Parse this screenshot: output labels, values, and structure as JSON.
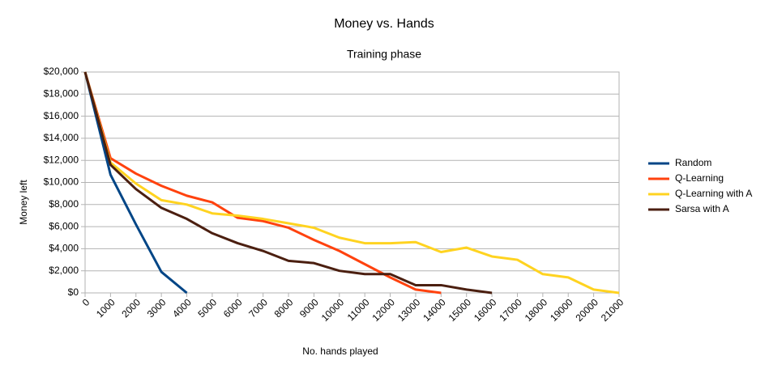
{
  "chart_data": {
    "type": "line",
    "title": "Money vs. Hands",
    "subtitle": "Training phase",
    "xlabel": "No. hands played",
    "ylabel": "Money left",
    "x": [
      0,
      1000,
      2000,
      3000,
      4000,
      5000,
      6000,
      7000,
      8000,
      9000,
      10000,
      11000,
      12000,
      13000,
      14000,
      15000,
      16000,
      17000,
      18000,
      19000,
      20000,
      21000
    ],
    "xlim": [
      0,
      21000
    ],
    "xticks": [
      0,
      1000,
      2000,
      3000,
      4000,
      5000,
      6000,
      7000,
      8000,
      9000,
      10000,
      11000,
      12000,
      13000,
      14000,
      15000,
      16000,
      17000,
      18000,
      19000,
      20000,
      21000
    ],
    "ylim": [
      0,
      20000
    ],
    "yticks": [
      {
        "value": 0,
        "label": "$0"
      },
      {
        "value": 2000,
        "label": "$2,000"
      },
      {
        "value": 4000,
        "label": "$4,000"
      },
      {
        "value": 6000,
        "label": "$6,000"
      },
      {
        "value": 8000,
        "label": "$8,000"
      },
      {
        "value": 10000,
        "label": "$10,000"
      },
      {
        "value": 12000,
        "label": "$12,000"
      },
      {
        "value": 14000,
        "label": "$14,000"
      },
      {
        "value": 16000,
        "label": "$16,000"
      },
      {
        "value": 18000,
        "label": "$18,000"
      },
      {
        "value": 20000,
        "label": "$20,000"
      }
    ],
    "grid": true,
    "legend": "right",
    "series": [
      {
        "name": "Random",
        "color": "#004586",
        "values": [
          20000,
          10700,
          6200,
          1900,
          0,
          null,
          null,
          null,
          null,
          null,
          null,
          null,
          null,
          null,
          null,
          null,
          null,
          null,
          null,
          null,
          null,
          null
        ]
      },
      {
        "name": "Q-Learning",
        "color": "#ff420e",
        "values": [
          20000,
          12200,
          10800,
          9700,
          8800,
          8200,
          6800,
          6500,
          5900,
          4800,
          3800,
          2600,
          1400,
          300,
          0,
          null,
          null,
          null,
          null,
          null,
          null,
          null
        ]
      },
      {
        "name": "Q-Learning with A",
        "color": "#ffd320",
        "values": [
          20000,
          11800,
          9900,
          8400,
          8000,
          7200,
          7000,
          6700,
          6300,
          5900,
          5000,
          4500,
          4500,
          4600,
          3700,
          4100,
          3300,
          3000,
          1700,
          1400,
          300,
          0
        ]
      },
      {
        "name": "Sarsa with A",
        "color": "#4b1f10",
        "values": [
          20000,
          11600,
          9400,
          7700,
          6700,
          5400,
          4500,
          3800,
          2900,
          2700,
          2000,
          1700,
          1700,
          700,
          700,
          300,
          0,
          null,
          null,
          null,
          null,
          null
        ]
      }
    ]
  }
}
